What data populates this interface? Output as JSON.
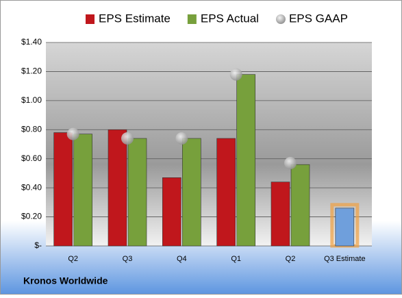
{
  "chart_data": {
    "type": "bar",
    "title": "Kronos Worldwide",
    "categories": [
      "Q2",
      "Q3",
      "Q4",
      "Q1",
      "Q2",
      "Q3 Estimate"
    ],
    "series": [
      {
        "name": "EPS Estimate",
        "color": "#c0171c",
        "colors": [
          "#c0171c",
          "#c0171c",
          "#c0171c",
          "#c0171c",
          "#c0171c",
          "#6f9fdc"
        ],
        "values": [
          0.78,
          0.8,
          0.47,
          0.74,
          0.44,
          0.26
        ]
      },
      {
        "name": "EPS Actual",
        "color": "#77a03c",
        "values": [
          0.77,
          0.74,
          0.74,
          1.18,
          0.56,
          null
        ]
      },
      {
        "name": "EPS GAAP",
        "color": "#a6a6a6",
        "marker": "circle",
        "values": [
          0.77,
          0.74,
          0.74,
          1.18,
          0.57,
          null
        ]
      }
    ],
    "ylim": [
      0,
      1.4
    ],
    "yticks": [
      {
        "value": 0,
        "label": "$-"
      },
      {
        "value": 0.2,
        "label": "$0.20"
      },
      {
        "value": 0.4,
        "label": "$0.40"
      },
      {
        "value": 0.6,
        "label": "$0.60"
      },
      {
        "value": 0.8,
        "label": "$0.80"
      },
      {
        "value": 1.0,
        "label": "$1.00"
      },
      {
        "value": 1.2,
        "label": "$1.20"
      },
      {
        "value": 1.4,
        "label": "$1.40"
      }
    ],
    "grid": true,
    "legend": "top"
  }
}
